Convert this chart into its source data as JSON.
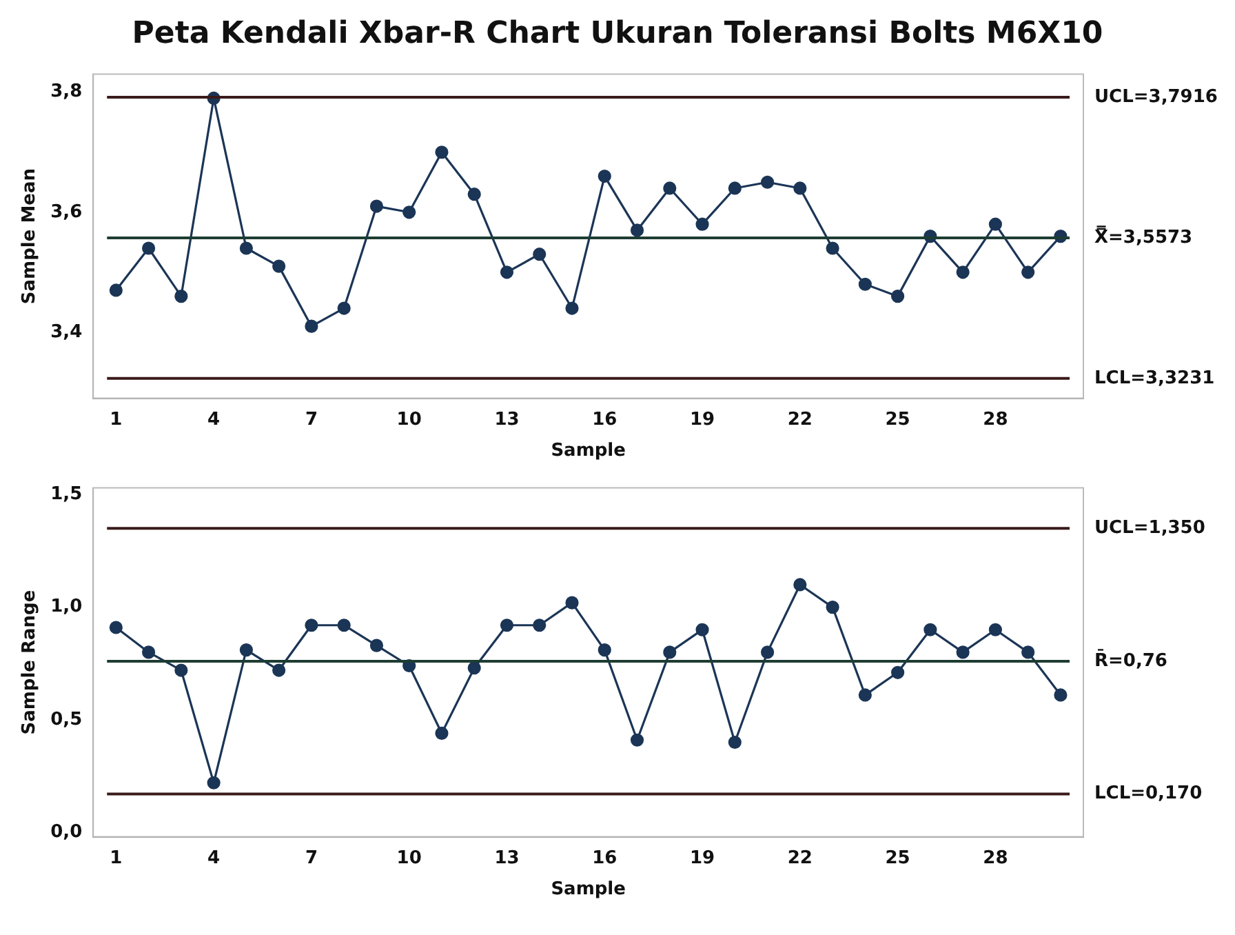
{
  "chart_data": [
    {
      "type": "line",
      "title": "Peta Kendali Xbar-R Chart Ukuran Toleransi Bolts M6X10",
      "xlabel": "Sample",
      "ylabel": "Sample Mean",
      "marker": "circle",
      "x": [
        1,
        2,
        3,
        4,
        5,
        6,
        7,
        8,
        9,
        10,
        11,
        12,
        13,
        14,
        15,
        16,
        17,
        18,
        19,
        20,
        21,
        22,
        23,
        24,
        25,
        26,
        27,
        28,
        29,
        30
      ],
      "xlim": [
        0.3,
        30.7
      ],
      "xticks": [
        1,
        4,
        7,
        10,
        13,
        16,
        19,
        22,
        25,
        28
      ],
      "ylim": [
        3.29,
        3.83
      ],
      "yticks": [
        {
          "value": 3.4,
          "label": "3,4"
        },
        {
          "value": 3.6,
          "label": "3,6"
        },
        {
          "value": 3.8,
          "label": "3,8"
        }
      ],
      "series": [
        {
          "color": "#1b3556",
          "values": [
            3.47,
            3.54,
            3.46,
            3.79,
            3.54,
            3.51,
            3.41,
            3.44,
            3.61,
            3.6,
            3.7,
            3.63,
            3.5,
            3.53,
            3.44,
            3.66,
            3.57,
            3.64,
            3.58,
            3.64,
            3.65,
            3.64,
            3.54,
            3.48,
            3.46,
            3.56,
            3.5,
            3.58,
            3.5,
            3.56
          ]
        }
      ],
      "ref_lines": [
        {
          "axis": "y",
          "value": 3.7916,
          "label": "UCL=3,7916",
          "color": "#3a1a1a"
        },
        {
          "axis": "y",
          "value": 3.5573,
          "label": "X̿=3,5573",
          "color": "#1e3d33"
        },
        {
          "axis": "y",
          "value": 3.3231,
          "label": "LCL=3,3231",
          "color": "#3a1a1a"
        }
      ]
    },
    {
      "type": "line",
      "xlabel": "Sample",
      "ylabel": "Sample Range",
      "marker": "circle",
      "x": [
        1,
        2,
        3,
        4,
        5,
        6,
        7,
        8,
        9,
        10,
        11,
        12,
        13,
        14,
        15,
        16,
        17,
        18,
        19,
        20,
        21,
        22,
        23,
        24,
        25,
        26,
        27,
        28,
        29,
        30
      ],
      "xlim": [
        0.3,
        30.7
      ],
      "xticks": [
        1,
        4,
        7,
        10,
        13,
        16,
        19,
        22,
        25,
        28
      ],
      "ylim": [
        -0.02,
        1.53
      ],
      "yticks": [
        {
          "value": 0,
          "label": "0,0"
        },
        {
          "value": 0.5,
          "label": "0,5"
        },
        {
          "value": 1.0,
          "label": "1,0"
        },
        {
          "value": 1.5,
          "label": "1,5"
        }
      ],
      "series": [
        {
          "color": "#1b3556",
          "values": [
            0.91,
            0.8,
            0.72,
            0.22,
            0.81,
            0.72,
            0.92,
            0.92,
            0.83,
            0.74,
            0.44,
            0.73,
            0.92,
            0.92,
            1.02,
            0.81,
            0.41,
            0.8,
            0.9,
            0.4,
            0.8,
            1.1,
            1.0,
            0.61,
            0.71,
            0.9,
            0.8,
            0.9,
            0.8,
            0.61
          ]
        }
      ],
      "ref_lines": [
        {
          "axis": "y",
          "value": 1.35,
          "label": "UCL=1,350",
          "color": "#3a1a1a"
        },
        {
          "axis": "y",
          "value": 0.76,
          "label": "R̄=0,76",
          "color": "#1e3d33"
        },
        {
          "axis": "y",
          "value": 0.17,
          "label": "LCL=0,170",
          "color": "#3a1a1a"
        }
      ]
    }
  ]
}
